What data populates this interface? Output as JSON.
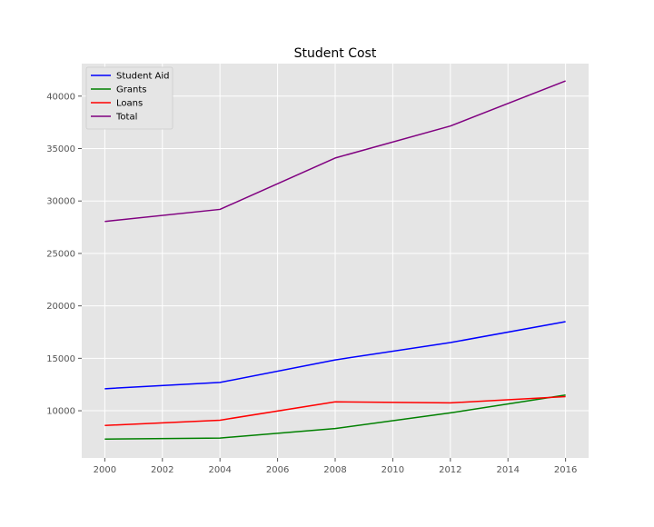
{
  "chart_data": {
    "type": "line",
    "title": "Student Cost",
    "xlabel": "",
    "ylabel": "",
    "x": [
      2000,
      2004,
      2008,
      2012,
      2016
    ],
    "xlim": [
      1999.2,
      2016.8
    ],
    "ylim": [
      5500,
      43100
    ],
    "xticks": [
      2000,
      2002,
      2004,
      2006,
      2008,
      2010,
      2012,
      2014,
      2016
    ],
    "yticks": [
      10000,
      15000,
      20000,
      25000,
      30000,
      35000,
      40000
    ],
    "grid": true,
    "legend_position": "top-left",
    "series": [
      {
        "name": "Student Aid",
        "color": "#0000ff",
        "values": [
          12100,
          12700,
          14850,
          16500,
          18500
        ]
      },
      {
        "name": "Grants",
        "color": "#008000",
        "values": [
          7300,
          7400,
          8300,
          9800,
          11500
        ]
      },
      {
        "name": "Loans",
        "color": "#ff0000",
        "values": [
          8600,
          9100,
          10850,
          10750,
          11350
        ]
      },
      {
        "name": "Total",
        "color": "#800080",
        "values": [
          28050,
          29200,
          34100,
          37150,
          41450
        ]
      }
    ]
  }
}
